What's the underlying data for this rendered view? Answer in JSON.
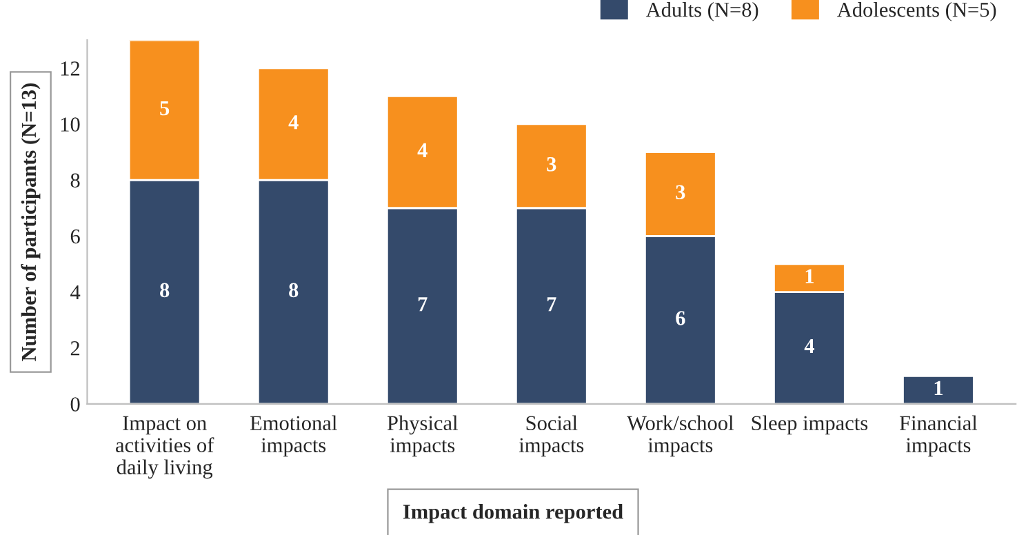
{
  "chart_data": {
    "type": "bar",
    "stacked": true,
    "xlabel": "Impact domain reported",
    "ylabel": "Number of participants (N=13)",
    "categories": [
      "Impact on\nactivities of\ndaily living",
      "Emotional\nimpacts",
      "Physical\nimpacts",
      "Social\nimpacts",
      "Work/school\nimpacts",
      "Sleep impacts",
      "Financial\nimpacts"
    ],
    "series": [
      {
        "name": "Adults (N=8)",
        "color": "#344a6b",
        "values": [
          8,
          8,
          7,
          7,
          6,
          4,
          1
        ]
      },
      {
        "name": "Adolescents (N=5)",
        "color": "#f7901e",
        "values": [
          5,
          4,
          4,
          3,
          3,
          1,
          null
        ]
      }
    ],
    "ylim": [
      0,
      13
    ],
    "yticks": [
      0,
      2,
      4,
      6,
      8,
      10,
      12
    ],
    "data_labels": true,
    "legend": "top right",
    "grid": false
  }
}
